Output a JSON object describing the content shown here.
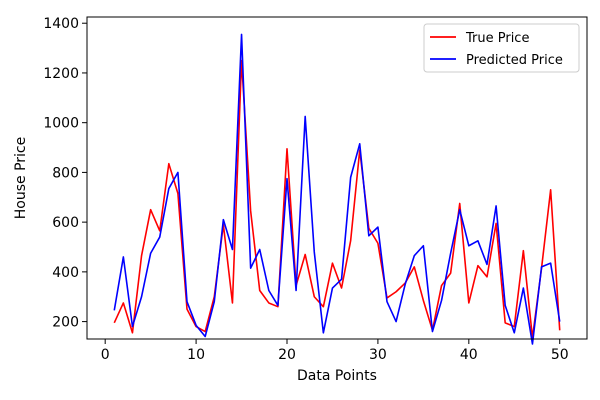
{
  "chart_data": {
    "type": "line",
    "title": "",
    "xlabel": "Data Points",
    "ylabel": "House Price",
    "xlim": [
      -2,
      53
    ],
    "ylim": [
      130,
      1425
    ],
    "xticks": [
      0,
      10,
      20,
      30,
      40,
      50
    ],
    "yticks": [
      200,
      400,
      600,
      800,
      1000,
      1200,
      1400
    ],
    "grid": false,
    "legend_position": "top-right",
    "x": [
      1,
      2,
      3,
      4,
      5,
      6,
      7,
      8,
      9,
      10,
      11,
      12,
      13,
      14,
      15,
      16,
      17,
      18,
      19,
      20,
      21,
      22,
      23,
      24,
      25,
      26,
      27,
      28,
      29,
      30,
      31,
      32,
      33,
      34,
      35,
      36,
      37,
      38,
      39,
      40,
      41,
      42,
      43,
      44,
      45,
      46,
      47,
      48,
      49,
      50
    ],
    "series": [
      {
        "name": "True Price",
        "color": "#ff0000",
        "values": [
          195,
          275,
          155,
          465,
          650,
          565,
          835,
          715,
          250,
          180,
          160,
          300,
          590,
          275,
          1250,
          645,
          325,
          275,
          260,
          895,
          345,
          470,
          300,
          260,
          435,
          335,
          525,
          890,
          575,
          515,
          295,
          320,
          355,
          420,
          285,
          165,
          345,
          395,
          675,
          275,
          425,
          380,
          595,
          195,
          180,
          485,
          135,
          415,
          730,
          165
        ]
      },
      {
        "name": "Predicted Price",
        "color": "#0000ff",
        "values": [
          245,
          460,
          180,
          300,
          475,
          540,
          735,
          800,
          280,
          185,
          140,
          280,
          610,
          490,
          1355,
          415,
          490,
          325,
          265,
          775,
          325,
          1025,
          480,
          155,
          335,
          370,
          780,
          915,
          545,
          580,
          280,
          200,
          350,
          465,
          505,
          160,
          285,
          475,
          650,
          505,
          525,
          430,
          665,
          265,
          155,
          335,
          110,
          420,
          435,
          200
        ]
      }
    ]
  }
}
